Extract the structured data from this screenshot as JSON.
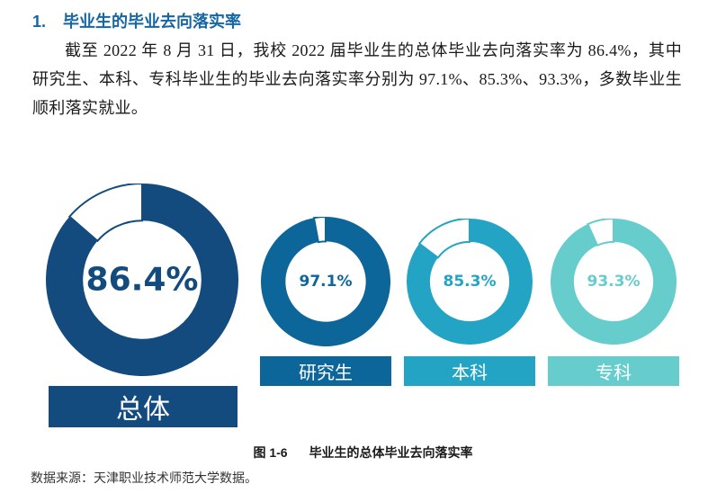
{
  "section": {
    "number": "1.",
    "title": "毕业生的毕业去向落实率"
  },
  "paragraph": "截至 2022 年 8 月 31 日，我校 2022 届毕业生的总体毕业去向落实率为 86.4%，其中研究生、本科、专科毕业生的毕业去向落实率分别为 97.1%、85.3%、93.3%，多数毕业生顺利落实就业。",
  "figure": {
    "number": "图 1-6",
    "title": "毕业生的总体毕业去向落实率"
  },
  "source": "数据来源：天津职业技术师范大学数据。",
  "colors": {
    "overall": "#134B7E",
    "graduate": "#0D6699",
    "undergraduate": "#24A4C4",
    "associate": "#66CCCC"
  },
  "chart_data": {
    "type": "pie",
    "subtype": "donut",
    "title": "毕业生的总体毕业去向落实率",
    "categories": [
      "总体",
      "研究生",
      "本科",
      "专科"
    ],
    "values": [
      86.4,
      97.1,
      85.3,
      93.3
    ],
    "unit": "%",
    "labels": [
      "86.4%",
      "97.1%",
      "85.3%",
      "93.3%"
    ]
  },
  "donuts": {
    "overall": {
      "label": "总体",
      "value_text": "86.4%"
    },
    "graduate": {
      "label": "研究生",
      "value_text": "97.1%"
    },
    "undergraduate": {
      "label": "本科",
      "value_text": "85.3%"
    },
    "associate": {
      "label": "专科",
      "value_text": "93.3%"
    }
  }
}
